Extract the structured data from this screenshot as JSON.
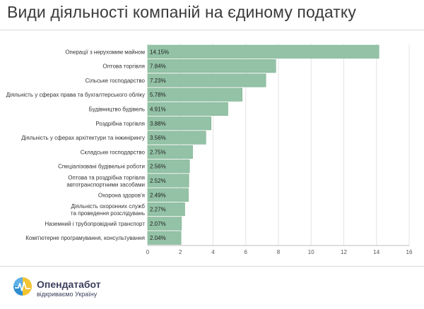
{
  "title": "Види діяльності компаній на єдиному податку",
  "brand": {
    "name": "Опендатабот",
    "tagline": "відкриваємо Україну"
  },
  "colors": {
    "bar": "#93c2a6",
    "bar_stroke": "#7fb292",
    "grid": "#e4e4e4",
    "text": "#333333"
  },
  "chart_data": {
    "type": "bar",
    "orientation": "horizontal",
    "title": "Види діяльності компаній на єдиному податку",
    "categories": [
      "Операції з нерухомим майном",
      "Оптова торгівля",
      "Сільське господарство",
      "Діяльність у сферах права та бухгалтерського обліку",
      "Будівництво будівель",
      "Роздрібна торгівля",
      "Діяльність у сферах архітектури та інжинірингу",
      "Складське господарство",
      "Спеціалізовані будівельні роботи",
      "Оптова та роздрібна торгівля автотранспортними засобами",
      "Охорона здоров'я",
      "Діяльність охоронних служб та проведення розслідувань",
      "Наземний і трубопровідний транспорт",
      "Комп'ютерне програмування, консультування"
    ],
    "values": [
      14.15,
      7.84,
      7.23,
      5.78,
      4.91,
      3.88,
      3.56,
      2.75,
      2.56,
      2.52,
      2.49,
      2.27,
      2.07,
      2.04
    ],
    "data_labels": [
      "14.15%",
      "7.84%",
      "7.23%",
      "5.78%",
      "4.91%",
      "3.88%",
      "3.56%",
      "2.75%",
      "2.56%",
      "2.52%",
      "2.49%",
      "2.27%",
      "2.07%",
      "2.04%"
    ],
    "xticks": [
      0,
      2,
      4,
      6,
      8,
      10,
      12,
      14,
      16
    ],
    "xlim": [
      0,
      16
    ],
    "xlabel": "",
    "ylabel": "",
    "grid": true,
    "legend": "none"
  }
}
